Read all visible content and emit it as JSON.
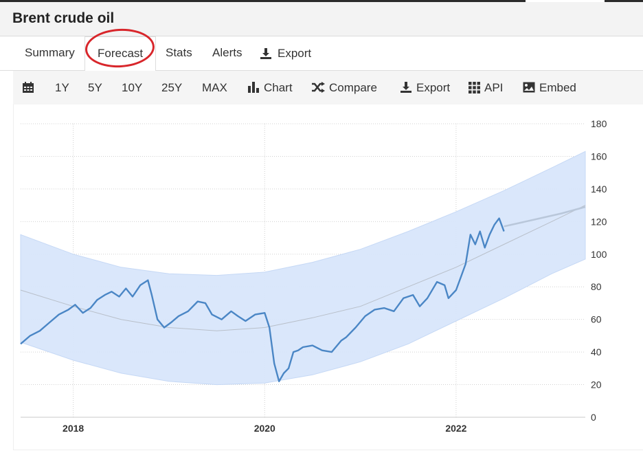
{
  "header": {
    "title": "Brent crude oil"
  },
  "tabs": [
    {
      "label": "Summary"
    },
    {
      "label": "Forecast"
    },
    {
      "label": "Stats"
    },
    {
      "label": "Alerts"
    },
    {
      "label": "Export"
    }
  ],
  "toolbar": {
    "ranges": [
      "1Y",
      "5Y",
      "10Y",
      "25Y",
      "MAX"
    ],
    "chart": "Chart",
    "compare": "Compare",
    "export": "Export",
    "api": "API",
    "embed": "Embed"
  },
  "chart_data": {
    "type": "line",
    "title": "",
    "xlabel": "",
    "ylabel": "",
    "ylim": [
      0,
      180
    ],
    "y_ticks": [
      0,
      20,
      40,
      60,
      80,
      100,
      120,
      140,
      160,
      180
    ],
    "x_ticks": [
      "2018",
      "2020",
      "2022"
    ],
    "xlim": [
      2017.45,
      2023.35
    ],
    "grid": true,
    "series": [
      {
        "x": [
          2017.45,
          2017.55,
          2017.65,
          2017.75,
          2017.85,
          2017.95,
          2018.02,
          2018.1,
          2018.18,
          2018.25,
          2018.33,
          2018.4,
          2018.48,
          2018.55,
          2018.62,
          2018.7,
          2018.78,
          2018.82,
          2018.88,
          2018.95,
          2019.02,
          2019.1,
          2019.2,
          2019.3,
          2019.38,
          2019.45,
          2019.55,
          2019.65,
          2019.72,
          2019.8,
          2019.9,
          2020.0,
          2020.05,
          2020.1,
          2020.15,
          2020.2,
          2020.25,
          2020.3,
          2020.35,
          2020.4,
          2020.5,
          2020.6,
          2020.7,
          2020.8,
          2020.85,
          2020.95,
          2021.05,
          2021.15,
          2021.25,
          2021.35,
          2021.45,
          2021.55,
          2021.62,
          2021.7,
          2021.8,
          2021.88,
          2021.92,
          2022.0,
          2022.05,
          2022.1,
          2022.15,
          2022.2,
          2022.25,
          2022.3,
          2022.35,
          2022.4,
          2022.45,
          2022.5
        ],
        "values": [
          45,
          50,
          53,
          58,
          63,
          66,
          69,
          64,
          67,
          72,
          75,
          77,
          74,
          79,
          74,
          81,
          84,
          75,
          60,
          55,
          58,
          62,
          65,
          71,
          70,
          63,
          60,
          65,
          62,
          59,
          63,
          64,
          55,
          33,
          22,
          27,
          30,
          40,
          41,
          43,
          44,
          41,
          40,
          47,
          49,
          55,
          62,
          66,
          67,
          65,
          73,
          75,
          68,
          73,
          83,
          81,
          73,
          78,
          86,
          94,
          112,
          106,
          114,
          104,
          112,
          118,
          122,
          114
        ]
      }
    ],
    "forecast": {
      "x": [
        2022.5,
        2022.8,
        2023.1,
        2023.35
      ],
      "values": [
        117,
        121,
        125,
        129
      ]
    },
    "band": {
      "x": [
        2017.45,
        2018.0,
        2018.5,
        2019.0,
        2019.5,
        2020.0,
        2020.5,
        2021.0,
        2021.5,
        2022.0,
        2022.5,
        2023.0,
        2023.35
      ],
      "upper": [
        112,
        100,
        92,
        88,
        87,
        89,
        95,
        103,
        114,
        126,
        139,
        153,
        163
      ],
      "lower": [
        46,
        35,
        27,
        22,
        20,
        21,
        26,
        34,
        45,
        59,
        73,
        88,
        97
      ],
      "mid": [
        78,
        68,
        60,
        55,
        53,
        55,
        61,
        68,
        80,
        92,
        106,
        120,
        130
      ]
    },
    "colors": {
      "line": "#4a86c5",
      "band": "#d8e6fb",
      "forecast": "#b9c7da",
      "grid": "#d0d0d0",
      "annotation": "#d8262b"
    }
  }
}
